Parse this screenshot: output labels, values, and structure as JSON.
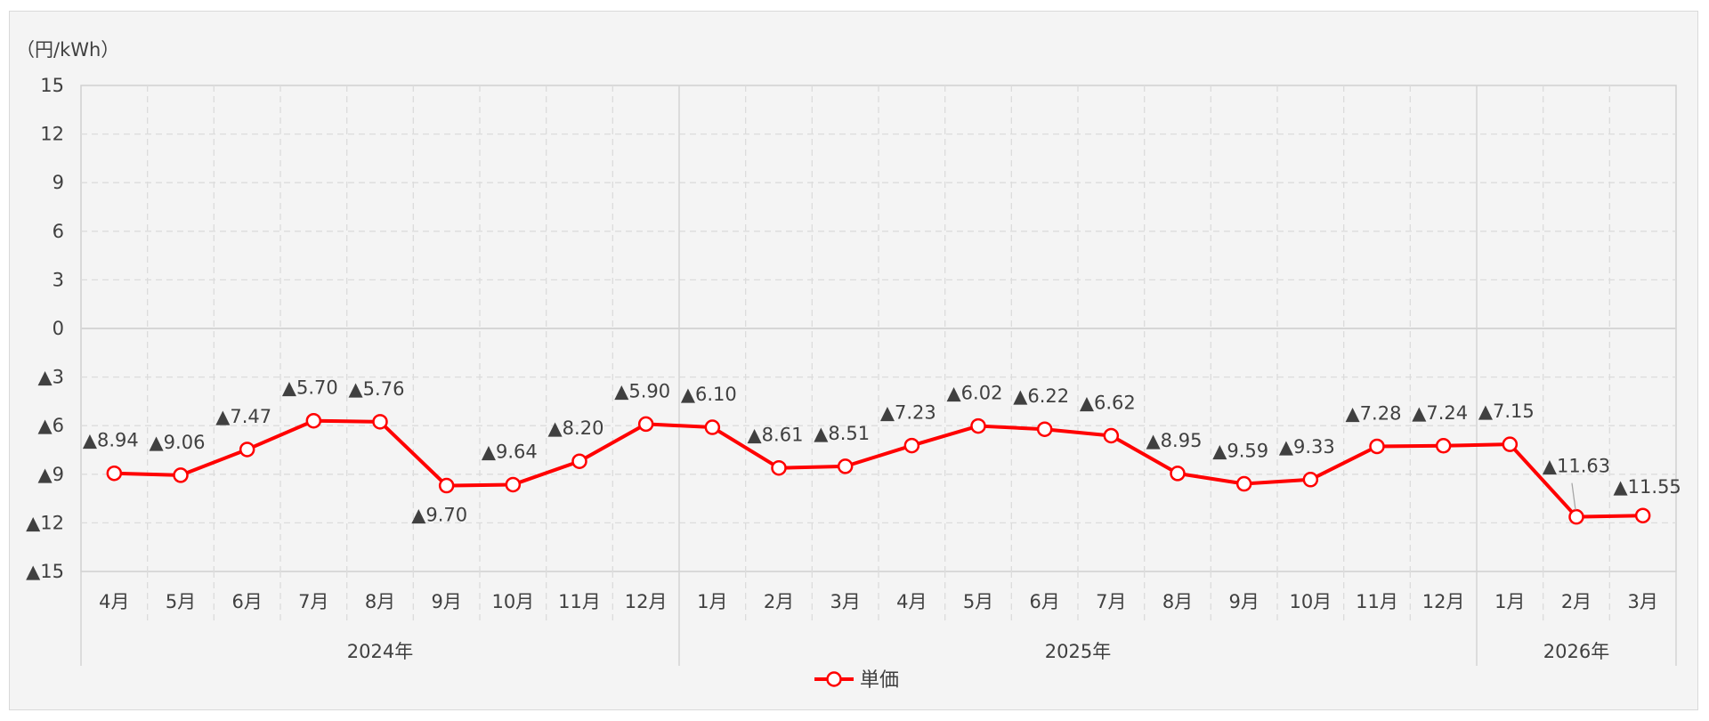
{
  "chart_data": {
    "type": "line",
    "unit_label": "（円/kWh）",
    "ylim": [
      -15,
      15
    ],
    "y_ticks": [
      {
        "value": 15,
        "label": "15"
      },
      {
        "value": 12,
        "label": "12"
      },
      {
        "value": 9,
        "label": "9"
      },
      {
        "value": 6,
        "label": "6"
      },
      {
        "value": 3,
        "label": "3"
      },
      {
        "value": 0,
        "label": "0"
      },
      {
        "value": -3,
        "label": "▲3"
      },
      {
        "value": -6,
        "label": "▲6"
      },
      {
        "value": -9,
        "label": "▲9"
      },
      {
        "value": -12,
        "label": "▲12"
      },
      {
        "value": -15,
        "label": "▲15"
      }
    ],
    "grid": true,
    "legend_position": "bottom-center",
    "categories": [
      "4月",
      "5月",
      "6月",
      "7月",
      "8月",
      "9月",
      "10月",
      "11月",
      "12月",
      "1月",
      "2月",
      "3月",
      "4月",
      "5月",
      "6月",
      "7月",
      "8月",
      "9月",
      "10月",
      "11月",
      "12月",
      "1月",
      "2月",
      "3月"
    ],
    "year_groups": [
      {
        "label": "2024年",
        "count": 9
      },
      {
        "label": "2025年",
        "count": 12
      },
      {
        "label": "2026年",
        "count": 3
      }
    ],
    "series": [
      {
        "name": "単価",
        "color": "#ff0000",
        "values": [
          -8.94,
          -9.06,
          -7.47,
          -5.7,
          -5.76,
          -9.7,
          -9.64,
          -8.2,
          -5.9,
          -6.1,
          -8.61,
          -8.51,
          -7.23,
          -6.02,
          -6.22,
          -6.62,
          -8.95,
          -9.59,
          -9.33,
          -7.28,
          -7.24,
          -7.15,
          -11.63,
          -11.55
        ],
        "value_labels": [
          "▲8.94",
          "▲9.06",
          "▲7.47",
          "▲5.70",
          "▲5.76",
          "▲9.70",
          "▲9.64",
          "▲8.20",
          "▲5.90",
          "▲6.10",
          "▲8.61",
          "▲8.51",
          "▲7.23",
          "▲6.02",
          "▲6.22",
          "▲6.62",
          "▲8.95",
          "▲9.59",
          "▲9.33",
          "▲7.28",
          "▲7.24",
          "▲7.15",
          "▲11.63",
          "▲11.55"
        ]
      }
    ]
  }
}
